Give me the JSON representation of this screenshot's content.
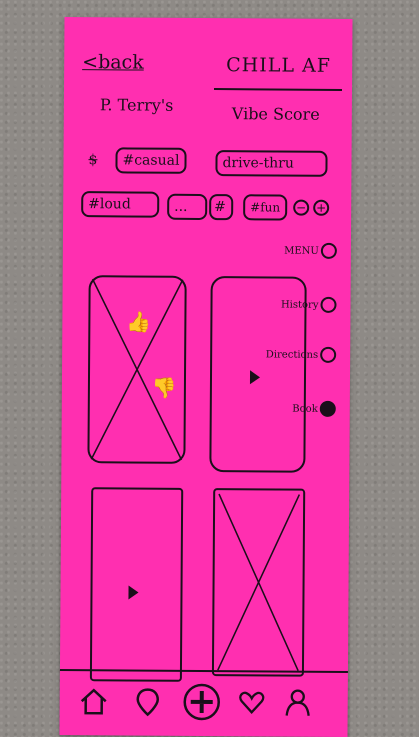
{
  "header": {
    "back_label": "<back",
    "title": "CHILL AF",
    "place_name": "P. Terry's",
    "vibe_score_label": "Vibe Score"
  },
  "tags": [
    {
      "label": "$",
      "strikethrough": true
    },
    {
      "label": "#casual"
    },
    {
      "label": "drive-thru"
    },
    {
      "label": "#loud"
    },
    {
      "label": "..."
    },
    {
      "label": "#"
    },
    {
      "label": "#fun"
    }
  ],
  "tag_controls": {
    "remove_icon": "minus-circle-icon",
    "add_icon": "plus-circle-icon"
  },
  "side_menu": [
    {
      "label": "MENU",
      "selected": false
    },
    {
      "label": "History",
      "selected": false
    },
    {
      "label": "Directions",
      "selected": false
    },
    {
      "label": "Book",
      "selected": true
    }
  ],
  "media_tiles": [
    {
      "kind": "image",
      "icons": [
        "thumbs-up-icon",
        "thumbs-down-icon"
      ]
    },
    {
      "kind": "video"
    },
    {
      "kind": "video"
    },
    {
      "kind": "image"
    }
  ],
  "bottom_nav": [
    {
      "icon": "home-icon"
    },
    {
      "icon": "location-pin-icon"
    },
    {
      "icon": "add-icon"
    },
    {
      "icon": "heart-icon"
    },
    {
      "icon": "profile-icon"
    }
  ],
  "colors": {
    "paper": "#ff2fb0",
    "ink": "#1a0f1a"
  }
}
